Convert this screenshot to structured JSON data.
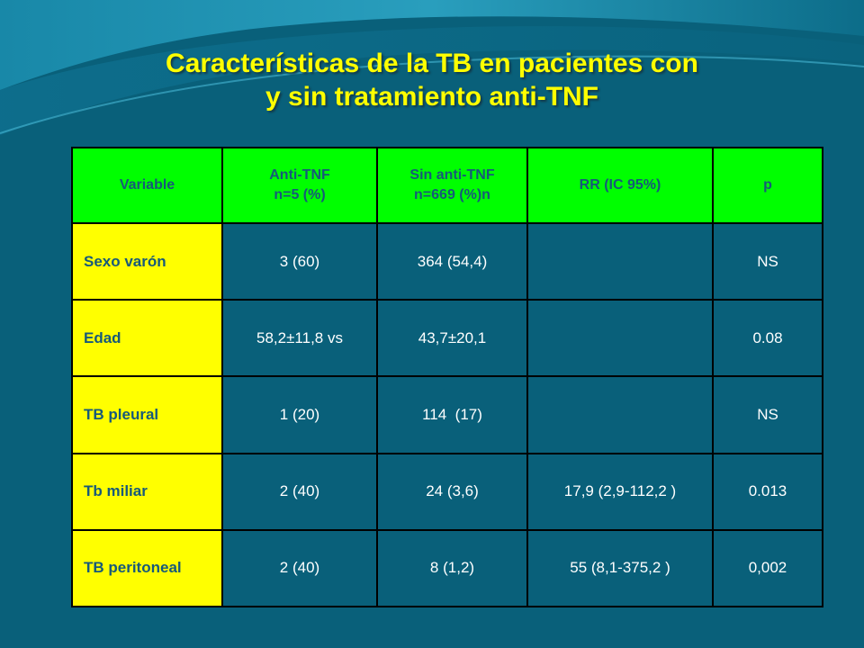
{
  "slide": {
    "title_line1": "Características de la TB en pacientes con",
    "title_line2": "y sin tratamiento anti-TNF"
  },
  "table": {
    "headers": [
      {
        "line1": "Variable",
        "line2": ""
      },
      {
        "line1": "Anti-TNF",
        "line2": "n=5 (%)"
      },
      {
        "line1": "Sin anti-TNF",
        "line2": "n=669 (%)n"
      },
      {
        "line1": "RR (IC 95%)",
        "line2": ""
      },
      {
        "line1": "p",
        "line2": ""
      }
    ],
    "rows": [
      {
        "variable": "Sexo varón",
        "anti_tnf": "3 (60)",
        "sin_anti_tnf": "364 (54,4)",
        "rr": "",
        "p": "NS"
      },
      {
        "variable": "Edad",
        "anti_tnf": "58,2±11,8 vs",
        "sin_anti_tnf": "43,7±20,1",
        "rr": "",
        "p": "0.08"
      },
      {
        "variable": "TB pleural",
        "anti_tnf": "1 (20)",
        "sin_anti_tnf": "114  (17)",
        "rr": "",
        "p": "NS"
      },
      {
        "variable": "Tb miliar",
        "anti_tnf": "2 (40)",
        "sin_anti_tnf": "24 (3,6)",
        "rr": "17,9 (2,9-112,2 )",
        "p": "0.013"
      },
      {
        "variable": "TB peritoneal",
        "anti_tnf": "2 (40)",
        "sin_anti_tnf": "8 (1,2)",
        "rr": "55 (8,1-375,2 )",
        "p": "0,002"
      }
    ]
  },
  "colors": {
    "background": "#09607a",
    "title": "#ffff00",
    "header_fill": "#00ff00",
    "first_col_fill": "#ffff00",
    "header_text": "#17597a",
    "cell_text": "#ffffff"
  }
}
